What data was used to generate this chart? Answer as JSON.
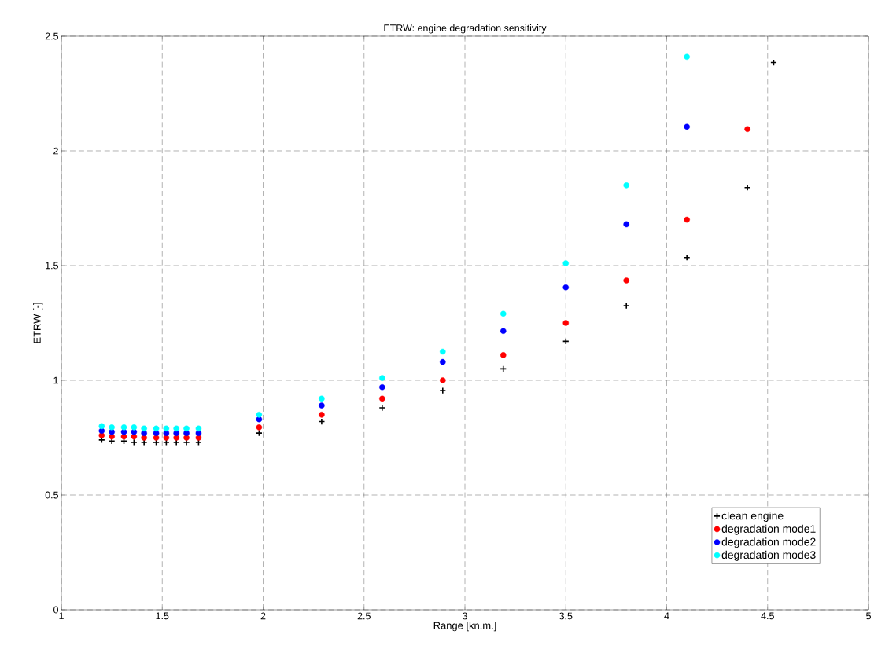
{
  "chart_data": {
    "type": "scatter",
    "title": "ETRW: engine degradation sensitivity",
    "xlabel": "Range [kn.m.]",
    "ylabel": "ETRW [-]",
    "xlim": [
      1,
      5
    ],
    "ylim": [
      0,
      2.5
    ],
    "xticks": [
      1,
      1.5,
      2,
      2.5,
      3,
      3.5,
      4,
      4.5,
      5
    ],
    "yticks": [
      0,
      0.5,
      1,
      1.5,
      2,
      2.5
    ],
    "grid": true,
    "legend": "bottom right",
    "series": [
      {
        "name": "clean engine",
        "color": "#000000",
        "marker": "cross",
        "x": [
          1.2,
          1.25,
          1.31,
          1.36,
          1.41,
          1.47,
          1.52,
          1.57,
          1.62,
          1.68,
          1.98,
          2.29,
          2.59,
          2.89,
          3.19,
          3.5,
          3.8,
          4.1,
          4.4,
          4.53
        ],
        "values": [
          0.74,
          0.735,
          0.735,
          0.73,
          0.73,
          0.73,
          0.73,
          0.73,
          0.73,
          0.73,
          0.77,
          0.82,
          0.88,
          0.955,
          1.05,
          1.17,
          1.325,
          1.535,
          1.84,
          2.385
        ]
      },
      {
        "name": "degradation mode1",
        "color": "#ff0000",
        "marker": "circle",
        "x": [
          1.2,
          1.25,
          1.31,
          1.36,
          1.41,
          1.47,
          1.52,
          1.57,
          1.62,
          1.68,
          1.98,
          2.29,
          2.59,
          2.89,
          3.19,
          3.5,
          3.8,
          4.1,
          4.4
        ],
        "values": [
          0.76,
          0.755,
          0.755,
          0.755,
          0.75,
          0.75,
          0.75,
          0.75,
          0.75,
          0.75,
          0.795,
          0.85,
          0.92,
          1.0,
          1.11,
          1.25,
          1.435,
          1.7,
          2.095
        ]
      },
      {
        "name": "degradation mode2",
        "color": "#0000ff",
        "marker": "circle",
        "x": [
          1.2,
          1.25,
          1.31,
          1.36,
          1.41,
          1.47,
          1.52,
          1.57,
          1.62,
          1.68,
          1.98,
          2.29,
          2.59,
          2.89,
          3.19,
          3.5,
          3.8,
          4.1
        ],
        "values": [
          0.78,
          0.775,
          0.775,
          0.775,
          0.77,
          0.77,
          0.77,
          0.77,
          0.77,
          0.77,
          0.83,
          0.89,
          0.97,
          1.08,
          1.215,
          1.405,
          1.68,
          2.105
        ]
      },
      {
        "name": "degradation mode3",
        "color": "#00ffff",
        "marker": "circle",
        "x": [
          1.2,
          1.25,
          1.31,
          1.36,
          1.41,
          1.47,
          1.52,
          1.57,
          1.62,
          1.68,
          1.98,
          2.29,
          2.59,
          2.89,
          3.19,
          3.5,
          3.8,
          4.1
        ],
        "values": [
          0.8,
          0.795,
          0.795,
          0.795,
          0.79,
          0.79,
          0.79,
          0.79,
          0.79,
          0.79,
          0.85,
          0.92,
          1.01,
          1.125,
          1.29,
          1.51,
          1.85,
          2.41
        ]
      }
    ]
  }
}
